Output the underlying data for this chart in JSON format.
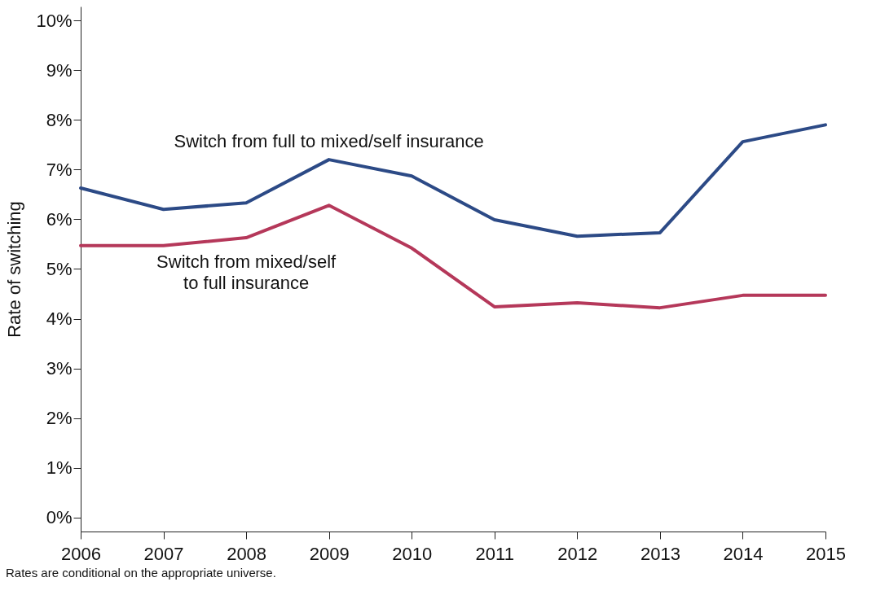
{
  "chart_data": {
    "type": "line",
    "ylabel": "Rate of switching",
    "x": [
      2006,
      2007,
      2008,
      2009,
      2010,
      2011,
      2012,
      2013,
      2014,
      2015
    ],
    "xlim": [
      2006,
      2015
    ],
    "xticks": [
      2006,
      2007,
      2008,
      2009,
      2010,
      2011,
      2012,
      2013,
      2014,
      2015
    ],
    "ylim": [
      -0.28,
      10.28
    ],
    "yticks": [
      {
        "value": 0,
        "label": "0%"
      },
      {
        "value": 1,
        "label": "1%"
      },
      {
        "value": 2,
        "label": "2%"
      },
      {
        "value": 3,
        "label": "3%"
      },
      {
        "value": 4,
        "label": "4%"
      },
      {
        "value": 5,
        "label": "5%"
      },
      {
        "value": 6,
        "label": "6%"
      },
      {
        "value": 7,
        "label": "7%"
      },
      {
        "value": 8,
        "label": "8%"
      },
      {
        "value": 9,
        "label": "9%"
      },
      {
        "value": 10,
        "label": "10%"
      }
    ],
    "series": [
      {
        "name": "Switch from full to mixed/self insurance",
        "color": "#2c4a86",
        "values": [
          6.63,
          6.2,
          6.33,
          7.2,
          6.87,
          5.99,
          5.66,
          5.73,
          7.56,
          7.9
        ]
      },
      {
        "name": "Switch from mixed/self to full insurance",
        "color": "#b5385a",
        "values": [
          5.47,
          5.47,
          5.63,
          6.28,
          5.42,
          4.24,
          4.32,
          4.22,
          4.47,
          4.47
        ]
      }
    ],
    "grid": false,
    "legend": false,
    "marker": "none",
    "line_style": "solid",
    "annotations": [
      "Rates are conditional on the appropriate universe."
    ]
  }
}
